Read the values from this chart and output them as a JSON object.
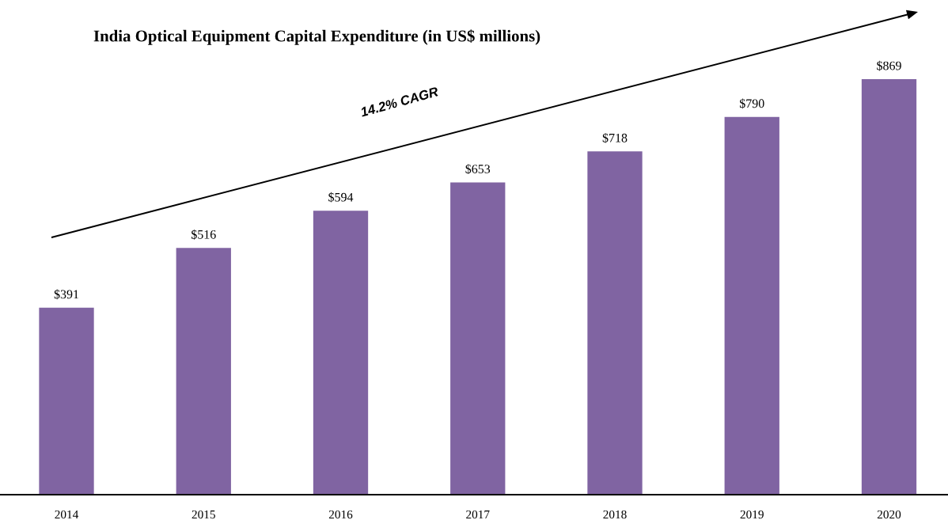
{
  "chart_data": {
    "type": "bar",
    "title": "India Optical Equipment Capital Expenditure (in US$ millions)",
    "categories": [
      "2014",
      "2015",
      "2016",
      "2017",
      "2018",
      "2019",
      "2020"
    ],
    "values": [
      391,
      516,
      594,
      653,
      718,
      790,
      869
    ],
    "value_labels": [
      "$391",
      "$516",
      "$594",
      "$653",
      "$718",
      "$790",
      "$869"
    ],
    "color": "#8064a2",
    "grid": false,
    "legend": false,
    "annotations": [
      "14.2% CAGR"
    ]
  }
}
